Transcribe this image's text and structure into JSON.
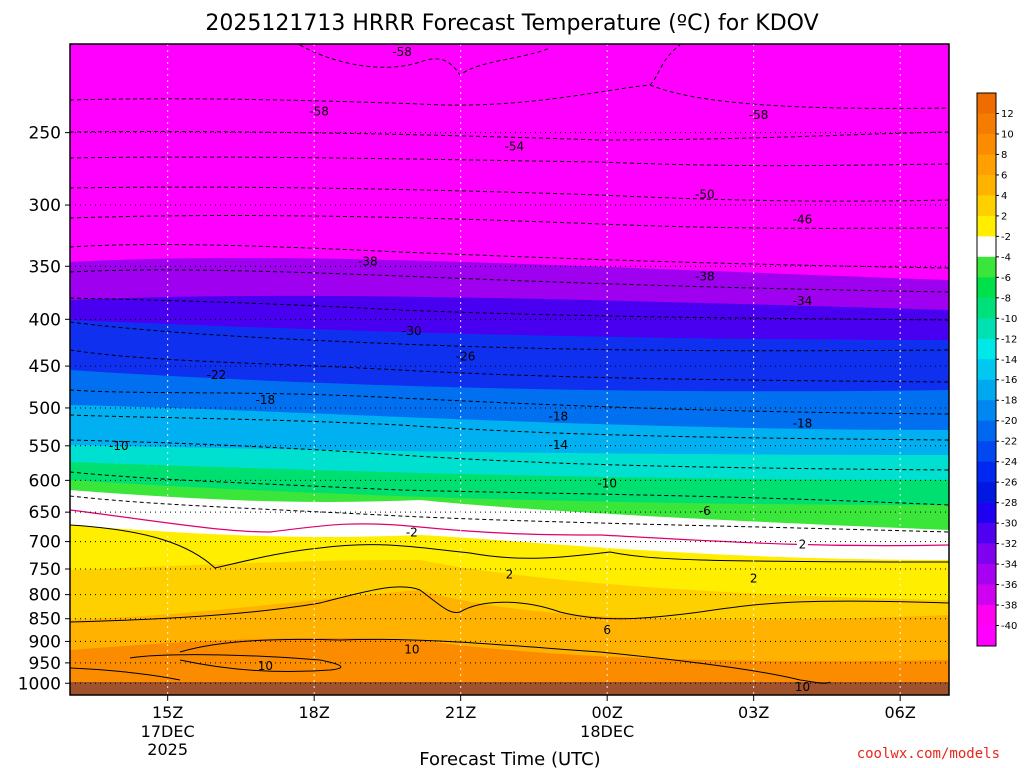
{
  "chart_data": {
    "type": "heatmap",
    "title": "2025121713 HRRR Forecast Temperature (ºC) for KDOV",
    "xlabel": "Forecast Time (UTC)",
    "ylabel": "",
    "credit": "coolwx.com/models",
    "y_scale": "log",
    "y_units": "hPa",
    "y_range": [
      1030,
      200
    ],
    "y_ticks": [
      250,
      300,
      350,
      400,
      450,
      500,
      550,
      600,
      650,
      700,
      750,
      800,
      850,
      900,
      950,
      1000
    ],
    "x_range": [
      "2025-12-17 13Z",
      "2025-12-18 07Z"
    ],
    "x_ticks": [
      {
        "time": "2025-12-17 15Z",
        "label": "15Z",
        "sub1": "17DEC",
        "sub2": "2025"
      },
      {
        "time": "2025-12-17 18Z",
        "label": "18Z",
        "sub1": "",
        "sub2": ""
      },
      {
        "time": "2025-12-17 21Z",
        "label": "21Z",
        "sub1": "",
        "sub2": ""
      },
      {
        "time": "2025-12-18 00Z",
        "label": "00Z",
        "sub1": "18DEC",
        "sub2": ""
      },
      {
        "time": "2025-12-18 03Z",
        "label": "03Z",
        "sub1": "",
        "sub2": ""
      },
      {
        "time": "2025-12-18 06Z",
        "label": "06Z",
        "sub1": "",
        "sub2": ""
      }
    ],
    "colorbar": {
      "labels": [
        "12",
        "10",
        "8",
        "6",
        "4",
        "2",
        "-2",
        "-4",
        "-6",
        "-8",
        "-10",
        "-12",
        "-14",
        "-16",
        "-18",
        "-20",
        "-22",
        "-24",
        "-26",
        "-28",
        "-30",
        "-32",
        "-34",
        "-36",
        "-38",
        "-40"
      ],
      "colors": [
        "#ef6c00",
        "#f57c00",
        "#fb8c00",
        "#ffa000",
        "#ffb300",
        "#ffd000",
        "#ffee00",
        "#ffffff",
        "#39e639",
        "#00e04a",
        "#00e07a",
        "#00e0b0",
        "#00e8e8",
        "#00c8f0",
        "#00a8f0",
        "#0088f0",
        "#0068f0",
        "#0048f0",
        "#0028f0",
        "#0018e0",
        "#2000f0",
        "#5000f0",
        "#8000f0",
        "#a800f0",
        "#d000f0",
        "#ff00f0",
        "#ff00ff"
      ]
    },
    "contour_labels": [
      {
        "text": "-58",
        "time": "2025-12-17 19.8Z",
        "p": 204
      },
      {
        "text": "-58",
        "time": "2025-12-17 18.1Z",
        "p": 237
      },
      {
        "text": "-58",
        "time": "2025-12-18 03.1Z",
        "p": 239
      },
      {
        "text": "-54",
        "time": "2025-12-17 22.1Z",
        "p": 259
      },
      {
        "text": "-50",
        "time": "2025-12-18 02.0Z",
        "p": 292
      },
      {
        "text": "-46",
        "time": "2025-12-18 04.0Z",
        "p": 311
      },
      {
        "text": "-38",
        "time": "2025-12-17 19.1Z",
        "p": 346
      },
      {
        "text": "-38",
        "time": "2025-12-18 02.0Z",
        "p": 359
      },
      {
        "text": "-34",
        "time": "2025-12-18 04.0Z",
        "p": 382
      },
      {
        "text": "-30",
        "time": "2025-12-17 20.0Z",
        "p": 412
      },
      {
        "text": "-26",
        "time": "2025-12-17 21.1Z",
        "p": 439
      },
      {
        "text": "-22",
        "time": "2025-12-17 16.0Z",
        "p": 460
      },
      {
        "text": "-18",
        "time": "2025-12-17 17.0Z",
        "p": 490
      },
      {
        "text": "-18",
        "time": "2025-12-17 23.0Z",
        "p": 511
      },
      {
        "text": "-18",
        "time": "2025-12-18 04.0Z",
        "p": 520
      },
      {
        "text": "-14",
        "time": "2025-12-17 23.0Z",
        "p": 549
      },
      {
        "text": "-10",
        "time": "2025-12-17 14.0Z",
        "p": 550
      },
      {
        "text": "-10",
        "time": "2025-12-18 00.0Z",
        "p": 605
      },
      {
        "text": "-6",
        "time": "2025-12-18 02.0Z",
        "p": 648
      },
      {
        "text": "-2",
        "time": "2025-12-17 20.0Z",
        "p": 684
      },
      {
        "text": "2",
        "time": "2025-12-18 04.0Z",
        "p": 705
      },
      {
        "text": "2",
        "time": "2025-12-17 22.0Z",
        "p": 760
      },
      {
        "text": "2",
        "time": "2025-12-18 03.0Z",
        "p": 768
      },
      {
        "text": "6",
        "time": "2025-12-18 00.0Z",
        "p": 874
      },
      {
        "text": "10",
        "time": "2025-12-17 20.0Z",
        "p": 918
      },
      {
        "text": "10",
        "time": "2025-12-17 17.0Z",
        "p": 957
      },
      {
        "text": "10",
        "time": "2025-12-18 04.0Z",
        "p": 1010
      }
    ]
  }
}
